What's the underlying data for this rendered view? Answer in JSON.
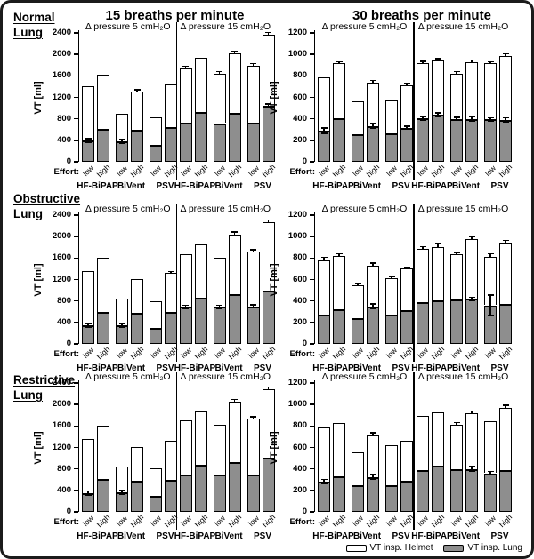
{
  "figure": {
    "col_headers": [
      "15 breaths per minute",
      "30 breaths per minute"
    ],
    "row_labels": [
      {
        "line1": "Normal",
        "line2": "Lung"
      },
      {
        "line1": "Obstructive",
        "line2": "Lung"
      },
      {
        "line1": "Restrictive",
        "line2": "Lung"
      }
    ],
    "effort_caption": "Effort:",
    "legend": {
      "helmet_label": "VT insp. Helmet",
      "lung_label": "VT insp. Lung",
      "helmet_color": "#ffffff",
      "lung_color": "#8e8e8e"
    },
    "colors": {
      "outline": "#000000",
      "background": "#ffffff",
      "lung_fill": "#8e8e8e",
      "helmet_fill": "#ffffff"
    }
  },
  "chart_data": [
    {
      "type": "bar",
      "row_label": "Normal Lung",
      "col_header": "15 breaths per minute",
      "ylabel": "VT [ml]",
      "ylim": [
        0,
        2400
      ],
      "ytick_step": 400,
      "groups": [
        "HF-BiPAP",
        "BiVent",
        "PSV"
      ],
      "efforts": [
        "low",
        "high"
      ],
      "stack_series": [
        "VT insp. Lung",
        "VT insp. Helmet"
      ],
      "subpanels": [
        {
          "title": "Δ pressure 5 cmH₂O",
          "vt_total": [
            1400,
            1620,
            890,
            1310,
            820,
            1440
          ],
          "vt_lung": [
            400,
            610,
            380,
            600,
            310,
            650
          ],
          "err_total": [
            0,
            0,
            0,
            20,
            0,
            0
          ],
          "err_lung": [
            20,
            0,
            20,
            0,
            0,
            0
          ]
        },
        {
          "title": "Δ pressure 15 cmH₂O",
          "vt_total": [
            1740,
            1930,
            1640,
            2020,
            1790,
            2360
          ],
          "vt_lung": [
            730,
            920,
            720,
            910,
            730,
            1040
          ],
          "err_total": [
            25,
            0,
            25,
            30,
            30,
            40
          ],
          "err_lung": [
            0,
            0,
            0,
            0,
            0,
            25
          ]
        }
      ]
    },
    {
      "type": "bar",
      "row_label": "Normal Lung",
      "col_header": "30 breaths per minute",
      "ylabel": "VT [ml]",
      "ylim": [
        0,
        1200
      ],
      "ytick_step": 200,
      "groups": [
        "HF-BiPAP",
        "BiVent",
        "PSV"
      ],
      "efforts": [
        "low",
        "high"
      ],
      "stack_series": [
        "VT insp. Lung",
        "VT insp. Helmet"
      ],
      "subpanels": [
        {
          "title": "Δ pressure 5 cmH₂O",
          "vt_total": [
            790,
            915,
            560,
            735,
            570,
            715
          ],
          "vt_lung": [
            290,
            405,
            255,
            335,
            265,
            315
          ],
          "err_total": [
            0,
            10,
            0,
            15,
            0,
            8
          ],
          "err_lung": [
            18,
            0,
            0,
            15,
            0,
            8
          ]
        },
        {
          "title": "Δ pressure 15 cmH₂O",
          "vt_total": [
            920,
            945,
            820,
            930,
            915,
            985
          ],
          "vt_lung": [
            405,
            440,
            400,
            400,
            395,
            390
          ],
          "err_total": [
            8,
            8,
            12,
            12,
            8,
            15
          ],
          "err_lung": [
            8,
            10,
            8,
            15,
            8,
            15
          ]
        }
      ]
    },
    {
      "type": "bar",
      "row_label": "Obstructive Lung",
      "col_header": "15 breaths per minute",
      "ylabel": "VT [ml]",
      "ylim": [
        0,
        2400
      ],
      "ytick_step": 400,
      "groups": [
        "HF-BiPAP",
        "BiVent",
        "PSV"
      ],
      "efforts": [
        "low",
        "high"
      ],
      "stack_series": [
        "VT insp. Lung",
        "VT insp. Helmet"
      ],
      "subpanels": [
        {
          "title": "Δ pressure 5 cmH₂O",
          "vt_total": [
            1360,
            1600,
            840,
            1210,
            800,
            1320
          ],
          "vt_lung": [
            350,
            600,
            350,
            575,
            300,
            595
          ],
          "err_total": [
            0,
            0,
            0,
            0,
            0,
            20
          ],
          "err_lung": [
            20,
            0,
            20,
            0,
            0,
            0
          ]
        },
        {
          "title": "Δ pressure 15 cmH₂O",
          "vt_total": [
            1680,
            1850,
            1600,
            2040,
            1720,
            2260
          ],
          "vt_lung": [
            690,
            855,
            690,
            920,
            700,
            1000
          ],
          "err_total": [
            0,
            0,
            0,
            30,
            25,
            35
          ],
          "err_lung": [
            20,
            0,
            20,
            0,
            20,
            0
          ]
        }
      ]
    },
    {
      "type": "bar",
      "row_label": "Obstructive Lung",
      "col_header": "30 breaths per minute",
      "ylabel": "VT [ml]",
      "ylim": [
        0,
        1200
      ],
      "ytick_step": 200,
      "groups": [
        "HF-BiPAP",
        "BiVent",
        "PSV"
      ],
      "efforts": [
        "low",
        "high"
      ],
      "stack_series": [
        "VT insp. Lung",
        "VT insp. Helmet"
      ],
      "subpanels": [
        {
          "title": "Δ pressure 5 cmH₂O",
          "vt_total": [
            775,
            820,
            545,
            730,
            615,
            700
          ],
          "vt_lung": [
            275,
            320,
            240,
            350,
            275,
            315
          ],
          "err_total": [
            25,
            15,
            10,
            15,
            8,
            8
          ],
          "err_lung": [
            0,
            0,
            0,
            15,
            0,
            0
          ]
        },
        {
          "title": "Δ pressure 15 cmH₂O",
          "vt_total": [
            885,
            905,
            835,
            980,
            815,
            940
          ],
          "vt_lung": [
            385,
            405,
            410,
            420,
            360,
            375
          ],
          "err_total": [
            15,
            25,
            10,
            15,
            20,
            20
          ],
          "err_lung": [
            0,
            0,
            0,
            10,
            90,
            0
          ]
        }
      ]
    },
    {
      "type": "bar",
      "row_label": "Restrictive Lung",
      "col_header": "15 breaths per minute",
      "ylabel": "VT [ml]",
      "ylim": [
        0,
        2400
      ],
      "ytick_step": 400,
      "groups": [
        "HF-BiPAP",
        "BiVent",
        "PSV"
      ],
      "efforts": [
        "low",
        "high"
      ],
      "stack_series": [
        "VT insp. Lung",
        "VT insp. Helmet"
      ],
      "subpanels": [
        {
          "title": "Δ pressure 5 cmH₂O",
          "vt_total": [
            1360,
            1610,
            845,
            1210,
            805,
            1330
          ],
          "vt_lung": [
            350,
            605,
            360,
            575,
            300,
            590
          ],
          "err_total": [
            0,
            0,
            0,
            0,
            0,
            0
          ],
          "err_lung": [
            25,
            0,
            25,
            0,
            0,
            0
          ]
        },
        {
          "title": "Δ pressure 15 cmH₂O",
          "vt_total": [
            1700,
            1870,
            1620,
            2060,
            1730,
            2280
          ],
          "vt_lung": [
            695,
            870,
            690,
            930,
            700,
            1010
          ],
          "err_total": [
            0,
            0,
            0,
            25,
            30,
            30
          ],
          "err_lung": [
            0,
            0,
            0,
            0,
            0,
            0
          ]
        }
      ]
    },
    {
      "type": "bar",
      "row_label": "Restrictive Lung",
      "col_header": "30 breaths per minute",
      "ylabel": "VT [ml]",
      "ylim": [
        0,
        1200
      ],
      "ytick_step": 200,
      "groups": [
        "HF-BiPAP",
        "BiVent",
        "PSV"
      ],
      "efforts": [
        "low",
        "high"
      ],
      "stack_series": [
        "VT insp. Lung",
        "VT insp. Helmet"
      ],
      "subpanels": [
        {
          "title": "Δ pressure 5 cmH₂O",
          "vt_total": [
            785,
            830,
            555,
            710,
            620,
            665
          ],
          "vt_lung": [
            280,
            330,
            245,
            325,
            250,
            290
          ],
          "err_total": [
            0,
            0,
            0,
            20,
            0,
            0
          ],
          "err_lung": [
            15,
            0,
            0,
            15,
            0,
            0
          ]
        },
        {
          "title": "Δ pressure 15 cmH₂O",
          "vt_total": [
            895,
            930,
            815,
            920,
            845,
            970
          ],
          "vt_lung": [
            390,
            430,
            395,
            400,
            360,
            390
          ],
          "err_total": [
            0,
            0,
            10,
            15,
            0,
            15
          ],
          "err_lung": [
            0,
            0,
            0,
            15,
            12,
            0
          ]
        }
      ]
    }
  ]
}
